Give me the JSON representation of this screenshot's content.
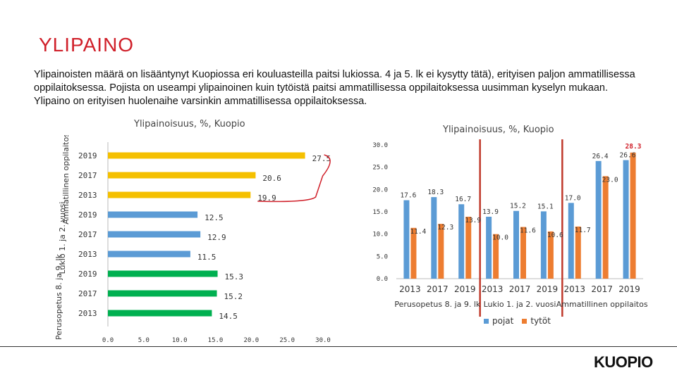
{
  "page": {
    "title": "YLIPAINO",
    "intro": "Ylipainoisten määrä on lisääntynyt Kuopiossa eri kouluasteilla paitsi lukiossa. 4 ja 5. lk ei kysytty tätä), erityisen paljon ammatillisessa oppilaitoksessa. Pojista on useampi ylipainoinen kuin tytöistä paitsi ammatillisessa oppilaitoksessa uusimman kyselyn mukaan. Ylipaino on erityisen huolenaihe varsinkin ammatillisessa oppilaitoksessa.",
    "logo": "KUOPIO"
  },
  "colors": {
    "accent_red": "#d0202a",
    "yellow": "#f5c000",
    "blue": "#5b9bd5",
    "green": "#00b050",
    "orange": "#ed7d31"
  },
  "chart_data": [
    {
      "type": "bar",
      "orientation": "horizontal",
      "title": "Ylipainoisuus, %, Kuopio",
      "group_labels": [
        "Ammatillinen oppilaitos",
        "Lukio 1. ja 2. vuosi",
        "Perusopetus 8. ja 9. lk"
      ],
      "categories": [
        "2019",
        "2017",
        "2013",
        "2019",
        "2017",
        "2013",
        "2019",
        "2017",
        "2013"
      ],
      "values": [
        27.5,
        20.6,
        19.9,
        12.5,
        12.9,
        11.5,
        15.3,
        15.2,
        14.5
      ],
      "value_labels": [
        "27.5",
        "20.6",
        "19.9",
        "12.5",
        "12.9",
        "11.5",
        "15.3",
        "15.2",
        "14.5"
      ],
      "bar_colors": [
        "#f5c000",
        "#f5c000",
        "#f5c000",
        "#5b9bd5",
        "#5b9bd5",
        "#5b9bd5",
        "#00b050",
        "#00b050",
        "#00b050"
      ],
      "xlim": [
        0,
        30
      ],
      "xticks": [
        "0.0",
        "5.0",
        "10.0",
        "15.0",
        "20.0",
        "25.0",
        "30.0"
      ],
      "callout_outline": "#d0202a"
    },
    {
      "type": "bar",
      "title": "Ylipainoisuus, %, Kuopio",
      "categories": [
        "2013",
        "2017",
        "2019",
        "2013",
        "2017",
        "2019",
        "2013",
        "2017",
        "2019"
      ],
      "groups": [
        "Perusopetus 8. ja 9. lk",
        "Lukio 1. ja 2. vuosi",
        "Ammatillinen oppilaitos"
      ],
      "series": [
        {
          "name": "pojat",
          "color": "#5b9bd5",
          "values": [
            17.6,
            18.3,
            16.7,
            13.9,
            15.2,
            15.1,
            17.0,
            26.4,
            26.6
          ],
          "labels": [
            "17.6",
            "18.3",
            "16.7",
            "13.9",
            "15.2",
            "15.1",
            "17.0",
            "26.4",
            "26.6"
          ]
        },
        {
          "name": "tytöt",
          "color": "#ed7d31",
          "values": [
            11.4,
            12.3,
            13.9,
            10.0,
            11.6,
            10.6,
            11.7,
            23.0,
            28.3
          ],
          "labels": [
            "11.4",
            "12.3",
            "13.9",
            "10.0",
            "11.6",
            "10.6",
            "11.7",
            "23.0",
            "28.3"
          ]
        }
      ],
      "ylim": [
        0,
        30
      ],
      "yticks": [
        "0.0",
        "5.0",
        "10.0",
        "15.0",
        "20.0",
        "25.0",
        "30.0"
      ],
      "highlight_label": "28.3",
      "legend": "bottom"
    }
  ]
}
